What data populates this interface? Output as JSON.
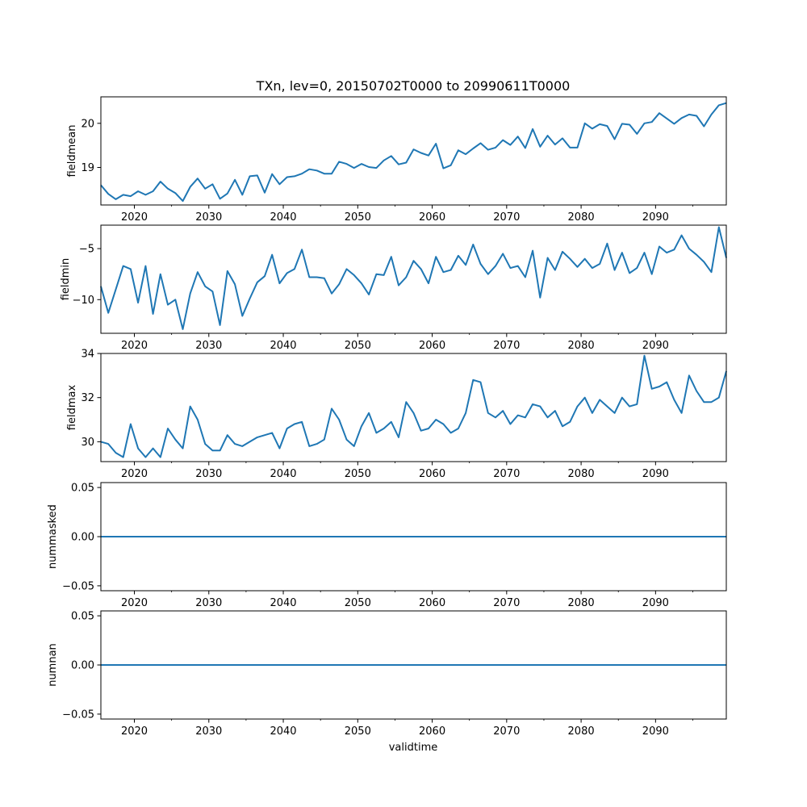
{
  "figure": {
    "title": "TXn, lev=0, 20150702T0000 to 20990611T0000",
    "xlabel": "validtime"
  },
  "chart_data": [
    {
      "type": "line",
      "ylabel": "fieldmean",
      "xlim": [
        2015.5,
        2099.5
      ],
      "ylim": [
        18.15,
        20.6
      ],
      "xticks": [
        2020,
        2030,
        2040,
        2050,
        2060,
        2070,
        2080,
        2090
      ],
      "xtick_labels": [
        "2020",
        "2030",
        "2040",
        "2050",
        "2060",
        "2070",
        "2080",
        "2090"
      ],
      "yticks": [
        19,
        20
      ],
      "ytick_labels": [
        "19",
        "20"
      ],
      "x": [
        2015.5,
        2016.5,
        2017.5,
        2018.5,
        2019.5,
        2020.5,
        2021.5,
        2022.5,
        2023.5,
        2024.5,
        2025.5,
        2026.5,
        2027.5,
        2028.5,
        2029.5,
        2030.5,
        2031.5,
        2032.5,
        2033.5,
        2034.5,
        2035.5,
        2036.5,
        2037.5,
        2038.5,
        2039.5,
        2040.5,
        2041.5,
        2042.5,
        2043.5,
        2044.5,
        2045.5,
        2046.5,
        2047.5,
        2048.5,
        2049.5,
        2050.5,
        2051.5,
        2052.5,
        2053.5,
        2054.5,
        2055.5,
        2056.5,
        2057.5,
        2058.5,
        2059.5,
        2060.5,
        2061.5,
        2062.5,
        2063.5,
        2064.5,
        2065.5,
        2066.5,
        2067.5,
        2068.5,
        2069.5,
        2070.5,
        2071.5,
        2072.5,
        2073.5,
        2074.5,
        2075.5,
        2076.5,
        2077.5,
        2078.5,
        2079.5,
        2080.5,
        2081.5,
        2082.5,
        2083.5,
        2084.5,
        2085.5,
        2086.5,
        2087.5,
        2088.5,
        2089.5,
        2090.5,
        2091.5,
        2092.5,
        2093.5,
        2094.5,
        2095.5,
        2096.5,
        2097.5,
        2098.5,
        2099.5
      ],
      "values": [
        18.6,
        18.4,
        18.28,
        18.38,
        18.35,
        18.46,
        18.38,
        18.46,
        18.68,
        18.52,
        18.42,
        18.24,
        18.56,
        18.75,
        18.52,
        18.62,
        18.29,
        18.41,
        18.72,
        18.38,
        18.8,
        18.82,
        18.43,
        18.85,
        18.62,
        18.78,
        18.8,
        18.86,
        18.96,
        18.93,
        18.86,
        18.86,
        19.13,
        19.08,
        18.99,
        19.08,
        19.01,
        18.99,
        19.16,
        19.26,
        19.07,
        19.11,
        19.41,
        19.33,
        19.27,
        19.54,
        18.98,
        19.05,
        19.39,
        19.3,
        19.43,
        19.55,
        19.4,
        19.45,
        19.62,
        19.51,
        19.7,
        19.44,
        19.87,
        19.47,
        19.72,
        19.52,
        19.66,
        19.45,
        19.45,
        20.0,
        19.88,
        19.98,
        19.94,
        19.64,
        19.99,
        19.97,
        19.76,
        20.0,
        20.03,
        20.23,
        20.11,
        19.99,
        20.12,
        20.2,
        20.17,
        19.93,
        20.2,
        20.41,
        20.46
      ]
    },
    {
      "type": "line",
      "ylabel": "fieldmin",
      "xlim": [
        2015.5,
        2099.5
      ],
      "ylim": [
        -13.3,
        -2.7
      ],
      "xticks": [
        2020,
        2030,
        2040,
        2050,
        2060,
        2070,
        2080,
        2090
      ],
      "xtick_labels": [
        "2020",
        "2030",
        "2040",
        "2050",
        "2060",
        "2070",
        "2080",
        "2090"
      ],
      "yticks": [
        -10,
        -5
      ],
      "ytick_labels": [
        "−10",
        "−5"
      ],
      "x": [
        2015.5,
        2016.5,
        2017.5,
        2018.5,
        2019.5,
        2020.5,
        2021.5,
        2022.5,
        2023.5,
        2024.5,
        2025.5,
        2026.5,
        2027.5,
        2028.5,
        2029.5,
        2030.5,
        2031.5,
        2032.5,
        2033.5,
        2034.5,
        2035.5,
        2036.5,
        2037.5,
        2038.5,
        2039.5,
        2040.5,
        2041.5,
        2042.5,
        2043.5,
        2044.5,
        2045.5,
        2046.5,
        2047.5,
        2048.5,
        2049.5,
        2050.5,
        2051.5,
        2052.5,
        2053.5,
        2054.5,
        2055.5,
        2056.5,
        2057.5,
        2058.5,
        2059.5,
        2060.5,
        2061.5,
        2062.5,
        2063.5,
        2064.5,
        2065.5,
        2066.5,
        2067.5,
        2068.5,
        2069.5,
        2070.5,
        2071.5,
        2072.5,
        2073.5,
        2074.5,
        2075.5,
        2076.5,
        2077.5,
        2078.5,
        2079.5,
        2080.5,
        2081.5,
        2082.5,
        2083.5,
        2084.5,
        2085.5,
        2086.5,
        2087.5,
        2088.5,
        2089.5,
        2090.5,
        2091.5,
        2092.5,
        2093.5,
        2094.5,
        2095.5,
        2096.5,
        2097.5,
        2098.5,
        2099.5
      ],
      "values": [
        -8.7,
        -11.3,
        -9.0,
        -6.7,
        -7.0,
        -10.3,
        -6.7,
        -11.4,
        -7.5,
        -10.5,
        -10.0,
        -12.9,
        -9.4,
        -7.3,
        -8.7,
        -9.2,
        -12.5,
        -7.2,
        -8.5,
        -11.6,
        -9.9,
        -8.3,
        -7.7,
        -5.6,
        -8.4,
        -7.4,
        -7.0,
        -5.1,
        -7.8,
        -7.8,
        -7.9,
        -9.4,
        -8.5,
        -7.0,
        -7.6,
        -8.4,
        -9.5,
        -7.5,
        -7.6,
        -5.8,
        -8.6,
        -7.8,
        -6.2,
        -7.0,
        -8.4,
        -5.8,
        -7.3,
        -7.1,
        -5.7,
        -6.6,
        -4.6,
        -6.5,
        -7.5,
        -6.7,
        -5.5,
        -6.9,
        -6.7,
        -7.8,
        -5.2,
        -9.8,
        -5.9,
        -7.1,
        -5.3,
        -6.0,
        -6.8,
        -6.0,
        -6.9,
        -6.5,
        -4.5,
        -7.1,
        -5.4,
        -7.4,
        -6.9,
        -5.4,
        -7.5,
        -4.8,
        -5.4,
        -5.1,
        -3.7,
        -5.0,
        -5.6,
        -6.3,
        -7.3,
        -2.9,
        -5.9
      ]
    },
    {
      "type": "line",
      "ylabel": "fieldmax",
      "xlim": [
        2015.5,
        2099.5
      ],
      "ylim": [
        29.1,
        34.0
      ],
      "xticks": [
        2020,
        2030,
        2040,
        2050,
        2060,
        2070,
        2080,
        2090
      ],
      "xtick_labels": [
        "2020",
        "2030",
        "2040",
        "2050",
        "2060",
        "2070",
        "2080",
        "2090"
      ],
      "yticks": [
        30,
        32,
        34
      ],
      "ytick_labels": [
        "30",
        "32",
        "34"
      ],
      "x": [
        2015.5,
        2016.5,
        2017.5,
        2018.5,
        2019.5,
        2020.5,
        2021.5,
        2022.5,
        2023.5,
        2024.5,
        2025.5,
        2026.5,
        2027.5,
        2028.5,
        2029.5,
        2030.5,
        2031.5,
        2032.5,
        2033.5,
        2034.5,
        2035.5,
        2036.5,
        2037.5,
        2038.5,
        2039.5,
        2040.5,
        2041.5,
        2042.5,
        2043.5,
        2044.5,
        2045.5,
        2046.5,
        2047.5,
        2048.5,
        2049.5,
        2050.5,
        2051.5,
        2052.5,
        2053.5,
        2054.5,
        2055.5,
        2056.5,
        2057.5,
        2058.5,
        2059.5,
        2060.5,
        2061.5,
        2062.5,
        2063.5,
        2064.5,
        2065.5,
        2066.5,
        2067.5,
        2068.5,
        2069.5,
        2070.5,
        2071.5,
        2072.5,
        2073.5,
        2074.5,
        2075.5,
        2076.5,
        2077.5,
        2078.5,
        2079.5,
        2080.5,
        2081.5,
        2082.5,
        2083.5,
        2084.5,
        2085.5,
        2086.5,
        2087.5,
        2088.5,
        2089.5,
        2090.5,
        2091.5,
        2092.5,
        2093.5,
        2094.5,
        2095.5,
        2096.5,
        2097.5,
        2098.5,
        2099.5
      ],
      "values": [
        30.0,
        29.9,
        29.5,
        29.3,
        30.8,
        29.7,
        29.3,
        29.7,
        29.3,
        30.6,
        30.1,
        29.7,
        31.6,
        31.0,
        29.9,
        29.6,
        29.6,
        30.3,
        29.9,
        29.8,
        30.0,
        30.2,
        30.3,
        30.4,
        29.7,
        30.6,
        30.8,
        30.9,
        29.8,
        29.9,
        30.1,
        31.5,
        31.0,
        30.1,
        29.8,
        30.7,
        31.3,
        30.4,
        30.6,
        30.9,
        30.2,
        31.8,
        31.3,
        30.5,
        30.6,
        31.0,
        30.8,
        30.4,
        30.6,
        31.3,
        32.8,
        32.7,
        31.3,
        31.1,
        31.4,
        30.8,
        31.2,
        31.1,
        31.7,
        31.6,
        31.1,
        31.4,
        30.7,
        30.9,
        31.6,
        32.0,
        31.3,
        31.9,
        31.6,
        31.3,
        32.0,
        31.6,
        31.7,
        33.9,
        32.4,
        32.5,
        32.7,
        31.9,
        31.3,
        33.0,
        32.3,
        31.8,
        31.8,
        32.0,
        33.2
      ]
    },
    {
      "type": "line",
      "ylabel": "nummasked",
      "xlim": [
        2015.5,
        2099.5
      ],
      "ylim": [
        -0.055,
        0.055
      ],
      "xticks": [
        2020,
        2030,
        2040,
        2050,
        2060,
        2070,
        2080,
        2090
      ],
      "xtick_labels": [
        "2020",
        "2030",
        "2040",
        "2050",
        "2060",
        "2070",
        "2080",
        "2090"
      ],
      "yticks": [
        -0.05,
        0.0,
        0.05
      ],
      "ytick_labels": [
        "−0.05",
        "0.00",
        "0.05"
      ],
      "x": [
        2015.5,
        2099.5
      ],
      "values": [
        0,
        0
      ]
    },
    {
      "type": "line",
      "ylabel": "numnan",
      "xlim": [
        2015.5,
        2099.5
      ],
      "ylim": [
        -0.055,
        0.055
      ],
      "xticks": [
        2020,
        2030,
        2040,
        2050,
        2060,
        2070,
        2080,
        2090
      ],
      "xtick_labels": [
        "2020",
        "2030",
        "2040",
        "2050",
        "2060",
        "2070",
        "2080",
        "2090"
      ],
      "yticks": [
        -0.05,
        0.0,
        0.05
      ],
      "ytick_labels": [
        "−0.05",
        "0.00",
        "0.05"
      ],
      "x": [
        2015.5,
        2099.5
      ],
      "values": [
        0,
        0
      ]
    }
  ]
}
